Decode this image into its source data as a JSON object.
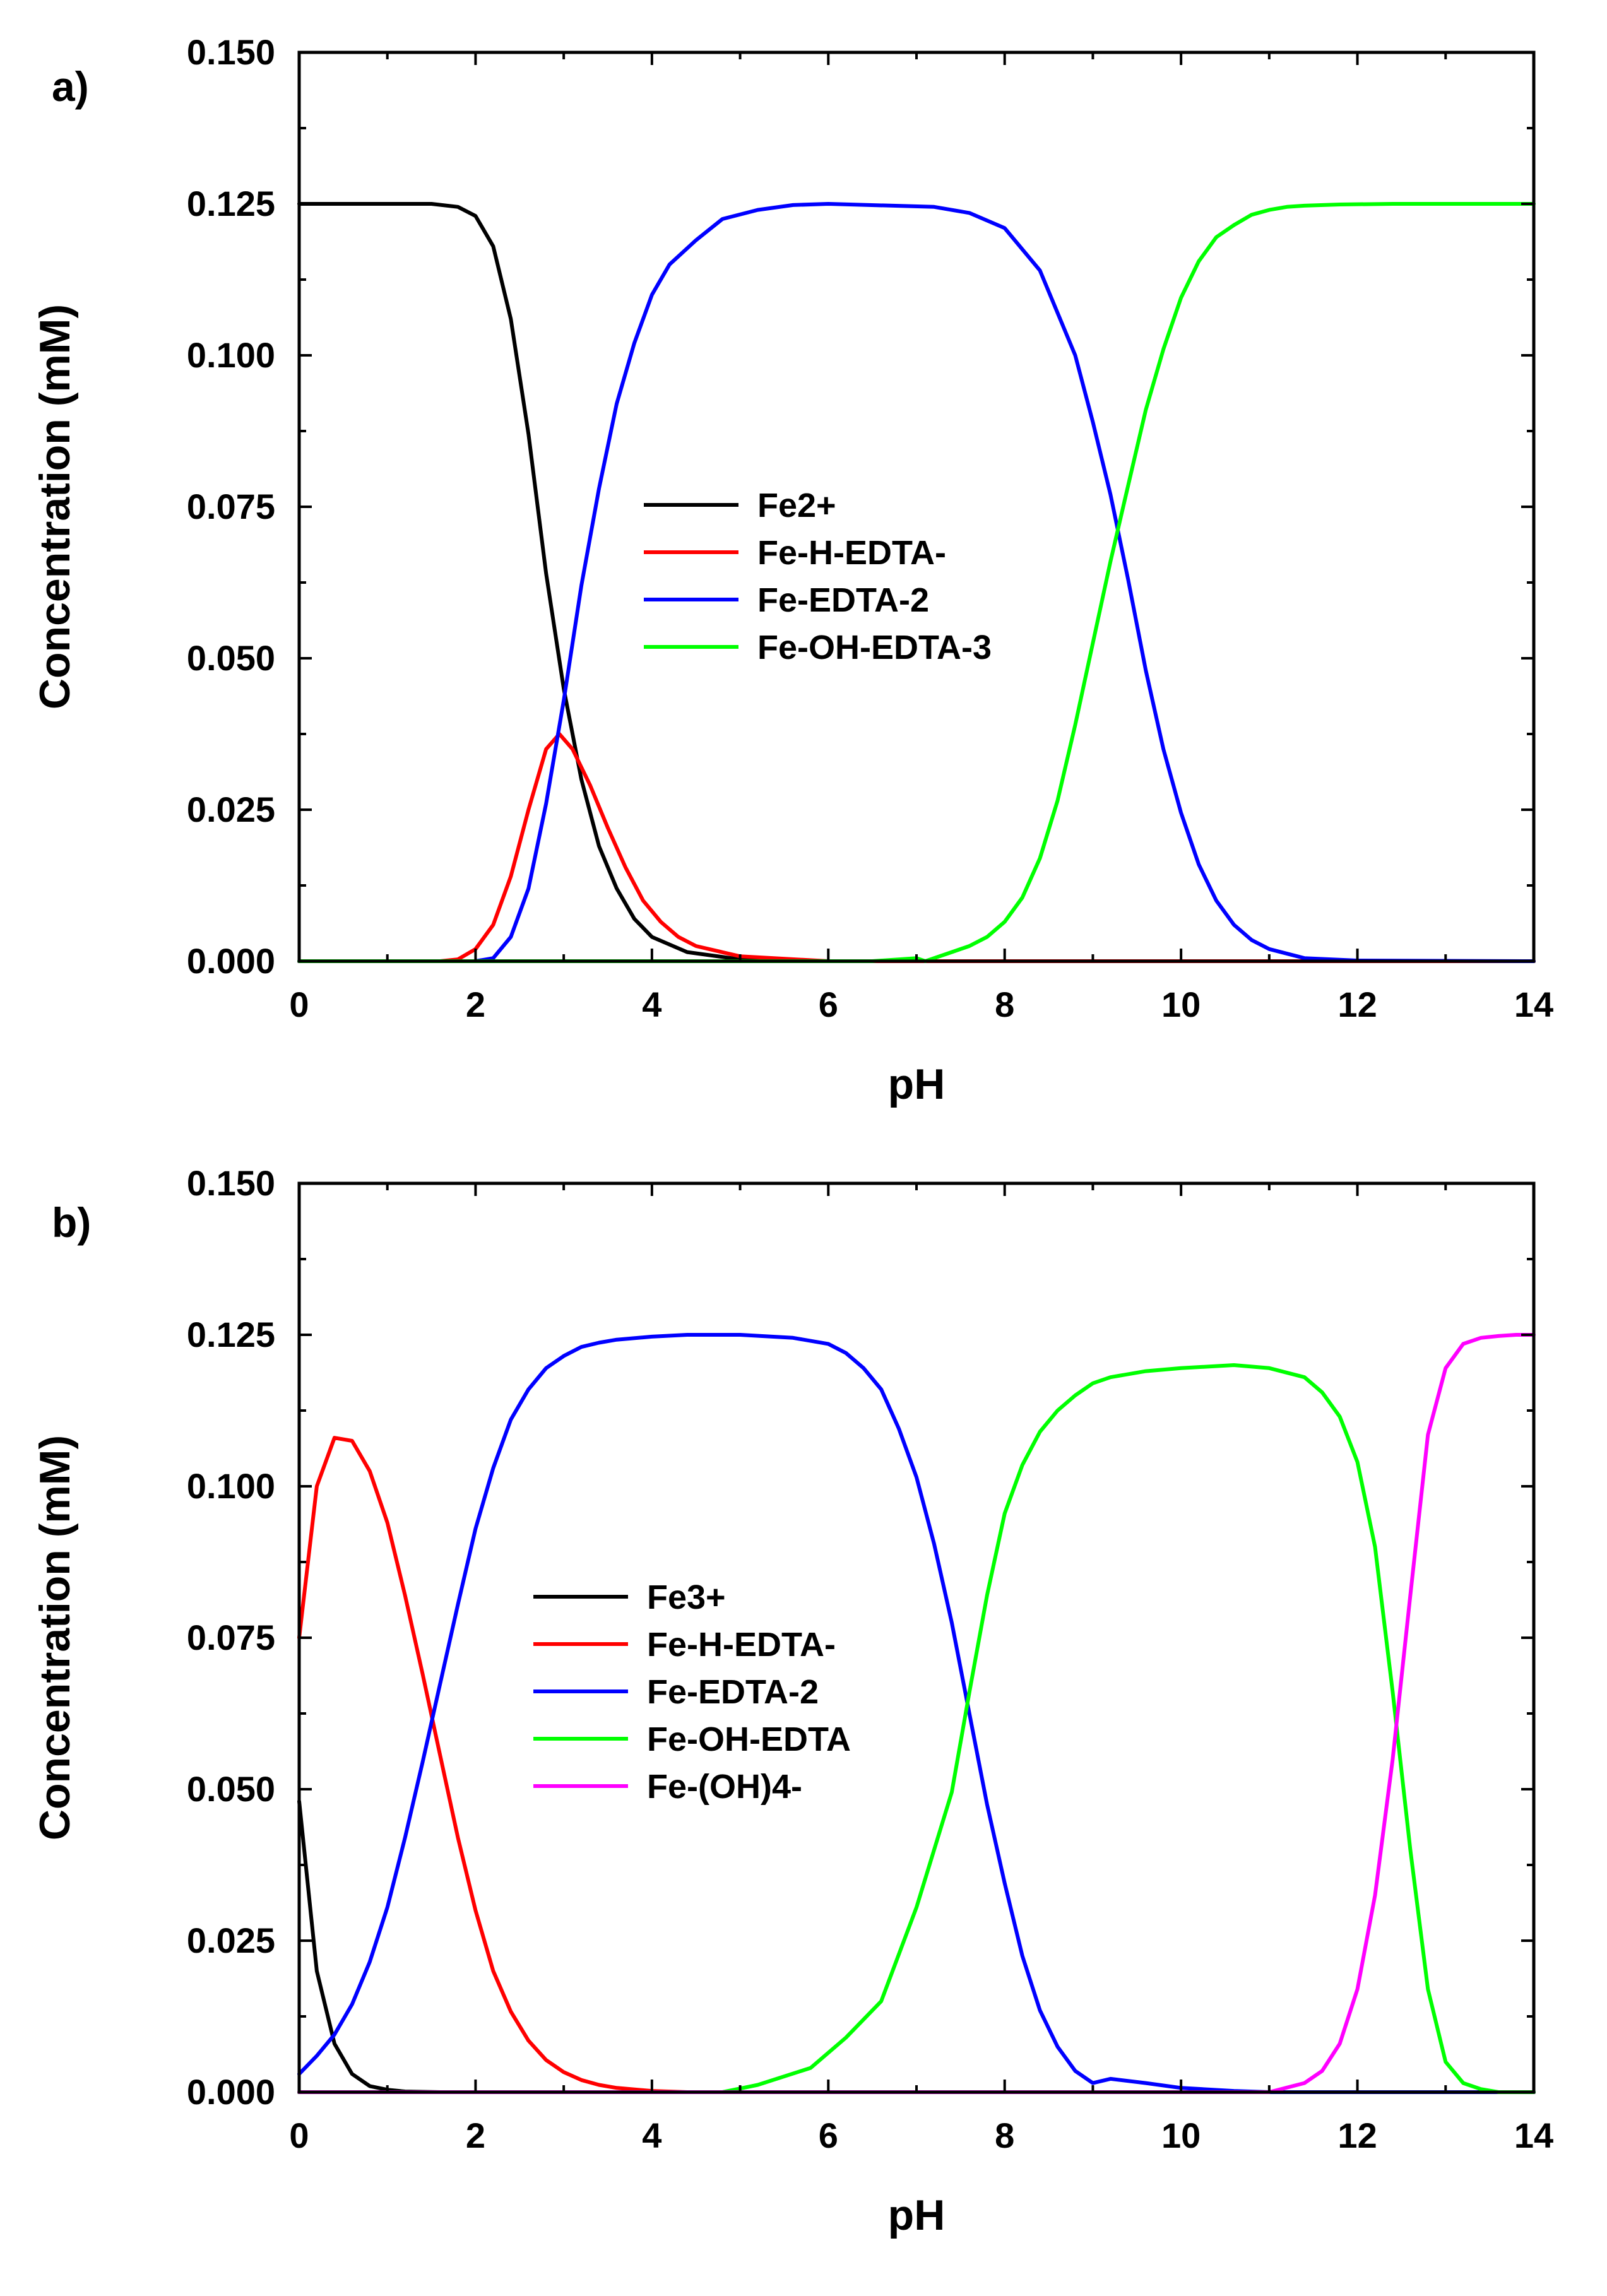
{
  "chart_data": [
    {
      "panel_label": "a)",
      "type": "line",
      "xlabel": "pH",
      "ylabel": "Concentration (mM)",
      "xlim": [
        0,
        14
      ],
      "ylim": [
        0,
        0.15
      ],
      "xticks": [
        "0",
        "2",
        "4",
        "6",
        "8",
        "10",
        "12",
        "14"
      ],
      "yticks": [
        "0.000",
        "0.025",
        "0.050",
        "0.075",
        "0.100",
        "0.125",
        "0.150"
      ],
      "legend_position": "center",
      "series": [
        {
          "name": "Fe2+",
          "color": "#000000",
          "x": [
            0,
            1.5,
            1.8,
            2.0,
            2.2,
            2.4,
            2.6,
            2.8,
            3.0,
            3.2,
            3.4,
            3.6,
            3.8,
            4.0,
            4.4,
            5.0,
            6.0,
            14
          ],
          "y": [
            0.125,
            0.125,
            0.1245,
            0.123,
            0.118,
            0.106,
            0.087,
            0.064,
            0.045,
            0.03,
            0.019,
            0.012,
            0.007,
            0.004,
            0.0015,
            0.0003,
            0.0,
            0.0
          ]
        },
        {
          "name": "Fe-H-EDTA-",
          "color": "#ff0000",
          "x": [
            0,
            1.6,
            1.8,
            2.0,
            2.2,
            2.4,
            2.6,
            2.8,
            2.95,
            3.1,
            3.3,
            3.5,
            3.7,
            3.9,
            4.1,
            4.3,
            4.5,
            5.0,
            6.0,
            14
          ],
          "y": [
            0.0,
            0.0,
            0.0003,
            0.002,
            0.006,
            0.014,
            0.025,
            0.035,
            0.0375,
            0.035,
            0.029,
            0.022,
            0.0155,
            0.01,
            0.0065,
            0.004,
            0.0025,
            0.0008,
            0.0,
            0.0
          ]
        },
        {
          "name": "Fe-EDTA-2",
          "color": "#0000ff",
          "x": [
            0,
            2.0,
            2.2,
            2.4,
            2.6,
            2.8,
            3.0,
            3.2,
            3.4,
            3.6,
            3.8,
            4.0,
            4.2,
            4.5,
            4.8,
            5.2,
            5.6,
            6.0,
            7.2,
            7.6,
            8.0,
            8.4,
            8.8,
            9.0,
            9.2,
            9.4,
            9.6,
            9.8,
            10.0,
            10.2,
            10.4,
            10.6,
            10.8,
            11.0,
            11.4,
            12.0,
            14
          ],
          "y": [
            0.0,
            0.0,
            0.0005,
            0.004,
            0.012,
            0.026,
            0.043,
            0.062,
            0.078,
            0.092,
            0.102,
            0.11,
            0.115,
            0.119,
            0.1225,
            0.124,
            0.1248,
            0.125,
            0.1245,
            0.1235,
            0.121,
            0.114,
            0.1,
            0.089,
            0.077,
            0.063,
            0.048,
            0.035,
            0.0245,
            0.016,
            0.01,
            0.006,
            0.0035,
            0.002,
            0.0005,
            0.0001,
            0.0
          ]
        },
        {
          "name": "Fe-OH-EDTA-3",
          "color": "#00ff00",
          "x": [
            0,
            6.5,
            7.0,
            7.1,
            7.2,
            7.4,
            7.6,
            7.8,
            8.0,
            8.2,
            8.4,
            8.6,
            8.8,
            9.0,
            9.2,
            9.4,
            9.6,
            9.8,
            10.0,
            10.2,
            10.4,
            10.6,
            10.8,
            11.0,
            11.2,
            11.4,
            11.8,
            12.4,
            14
          ],
          "y": [
            0.0,
            0.0,
            0.0005,
            0.0,
            0.0005,
            0.0015,
            0.0025,
            0.004,
            0.0065,
            0.0105,
            0.017,
            0.0265,
            0.039,
            0.0525,
            0.066,
            0.0785,
            0.091,
            0.101,
            0.1095,
            0.1155,
            0.1195,
            0.1215,
            0.1232,
            0.124,
            0.1245,
            0.1247,
            0.1249,
            0.125,
            0.125
          ]
        }
      ]
    },
    {
      "panel_label": "b)",
      "type": "line",
      "xlabel": "pH",
      "ylabel": "Concentration (mM)",
      "xlim": [
        0,
        14
      ],
      "ylim": [
        0,
        0.15
      ],
      "xticks": [
        "0",
        "2",
        "4",
        "6",
        "8",
        "10",
        "12",
        "14"
      ],
      "yticks": [
        "0.000",
        "0.025",
        "0.050",
        "0.075",
        "0.100",
        "0.125",
        "0.150"
      ],
      "legend_position": "center-left",
      "series": [
        {
          "name": "Fe3+",
          "color": "#000000",
          "x": [
            0,
            0.2,
            0.4,
            0.6,
            0.8,
            1.0,
            1.2,
            1.6,
            14
          ],
          "y": [
            0.048,
            0.02,
            0.008,
            0.003,
            0.001,
            0.0004,
            0.0001,
            0.0,
            0.0
          ]
        },
        {
          "name": "Fe-H-EDTA-",
          "color": "#ff0000",
          "x": [
            0,
            0.2,
            0.4,
            0.6,
            0.8,
            1.0,
            1.2,
            1.4,
            1.6,
            1.8,
            2.0,
            2.2,
            2.4,
            2.6,
            2.8,
            3.0,
            3.2,
            3.4,
            3.6,
            4.0,
            4.4,
            14
          ],
          "y": [
            0.075,
            0.1,
            0.108,
            0.1075,
            0.1025,
            0.094,
            0.082,
            0.069,
            0.0555,
            0.042,
            0.03,
            0.02,
            0.0133,
            0.0085,
            0.0053,
            0.0033,
            0.002,
            0.0012,
            0.0007,
            0.0002,
            0.0,
            0.0
          ]
        },
        {
          "name": "Fe-EDTA-2",
          "color": "#0000ff",
          "x": [
            0,
            0.2,
            0.4,
            0.6,
            0.8,
            1.0,
            1.2,
            1.4,
            1.6,
            1.8,
            2.0,
            2.2,
            2.4,
            2.6,
            2.8,
            3.0,
            3.2,
            3.4,
            3.6,
            4.0,
            4.4,
            5.0,
            5.6,
            6.0,
            6.2,
            6.4,
            6.6,
            6.8,
            7.0,
            7.2,
            7.4,
            7.6,
            7.8,
            8.0,
            8.2,
            8.4,
            8.6,
            8.8,
            9.0,
            9.2,
            9.6,
            10.0,
            10.6,
            11.0,
            14
          ],
          "y": [
            0.003,
            0.006,
            0.0095,
            0.0145,
            0.0215,
            0.0305,
            0.042,
            0.0545,
            0.0675,
            0.0805,
            0.093,
            0.103,
            0.111,
            0.116,
            0.1195,
            0.1215,
            0.123,
            0.1237,
            0.1242,
            0.1247,
            0.125,
            0.125,
            0.1245,
            0.1235,
            0.122,
            0.1195,
            0.116,
            0.1095,
            0.1015,
            0.0905,
            0.0775,
            0.0625,
            0.0475,
            0.0345,
            0.0225,
            0.0135,
            0.0075,
            0.0035,
            0.0015,
            0.0022,
            0.0015,
            0.0007,
            0.0002,
            0.0,
            0.0
          ]
        },
        {
          "name": "Fe-OH-EDTA",
          "color": "#00ff00",
          "x": [
            0,
            4.8,
            5.2,
            5.8,
            6.2,
            6.6,
            7.0,
            7.4,
            7.6,
            7.8,
            8.0,
            8.2,
            8.4,
            8.6,
            8.8,
            9.0,
            9.2,
            9.6,
            10.0,
            10.6,
            11.0,
            11.4,
            11.6,
            11.8,
            12.0,
            12.2,
            12.4,
            12.6,
            12.8,
            13.0,
            13.2,
            13.4,
            13.6,
            14
          ],
          "y": [
            0.0,
            0.0,
            0.0012,
            0.004,
            0.009,
            0.015,
            0.0305,
            0.0495,
            0.066,
            0.082,
            0.0955,
            0.1035,
            0.109,
            0.1125,
            0.115,
            0.117,
            0.118,
            0.119,
            0.1195,
            0.12,
            0.1195,
            0.118,
            0.1155,
            0.1115,
            0.104,
            0.09,
            0.066,
            0.04,
            0.017,
            0.005,
            0.0015,
            0.0005,
            0.0,
            0.0
          ]
        },
        {
          "name": "Fe-(OH)4-",
          "color": "#ff00ff",
          "x": [
            0,
            11.0,
            11.4,
            11.6,
            11.8,
            12.0,
            12.2,
            12.4,
            12.6,
            12.8,
            13.0,
            13.2,
            13.4,
            13.6,
            13.8,
            14
          ],
          "y": [
            0.0,
            0.0,
            0.0015,
            0.0035,
            0.008,
            0.017,
            0.0325,
            0.055,
            0.082,
            0.1085,
            0.1195,
            0.1235,
            0.1245,
            0.1248,
            0.125,
            0.125
          ]
        }
      ]
    }
  ]
}
